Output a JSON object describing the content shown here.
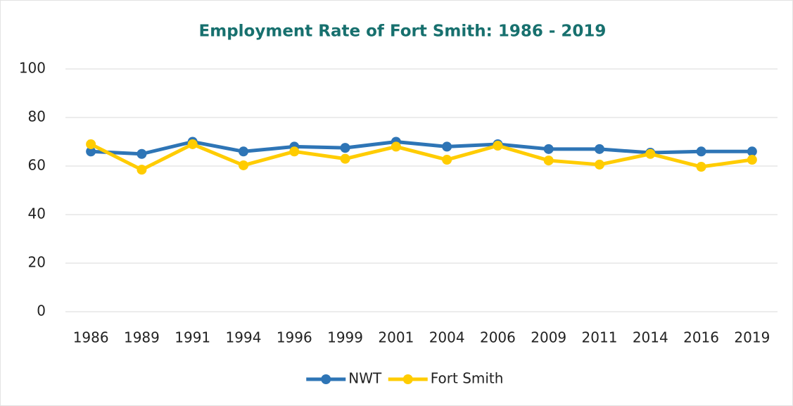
{
  "chart_data": {
    "type": "line",
    "title": "Employment Rate of Fort Smith: 1986 - 2019",
    "categories": [
      "1986",
      "1989",
      "1991",
      "1994",
      "1996",
      "1999",
      "2001",
      "2004",
      "2006",
      "2009",
      "2011",
      "2014",
      "2016",
      "2019"
    ],
    "series": [
      {
        "name": "NWT",
        "color": "#2e75b6",
        "values": [
          66,
          65,
          70,
          66,
          68,
          67.5,
          70,
          68,
          69,
          67,
          67,
          65.5,
          66,
          66
        ]
      },
      {
        "name": "Fort Smith",
        "color": "#ffcc00",
        "values": [
          69,
          58.5,
          69,
          60.3,
          66,
          63,
          68,
          62.6,
          68.4,
          62.3,
          60.6,
          65,
          59.7,
          62.6
        ]
      }
    ],
    "ylim": [
      0,
      100
    ],
    "yticks": [
      0,
      20,
      40,
      60,
      80,
      100
    ],
    "grid": true,
    "legend": "bottom"
  }
}
